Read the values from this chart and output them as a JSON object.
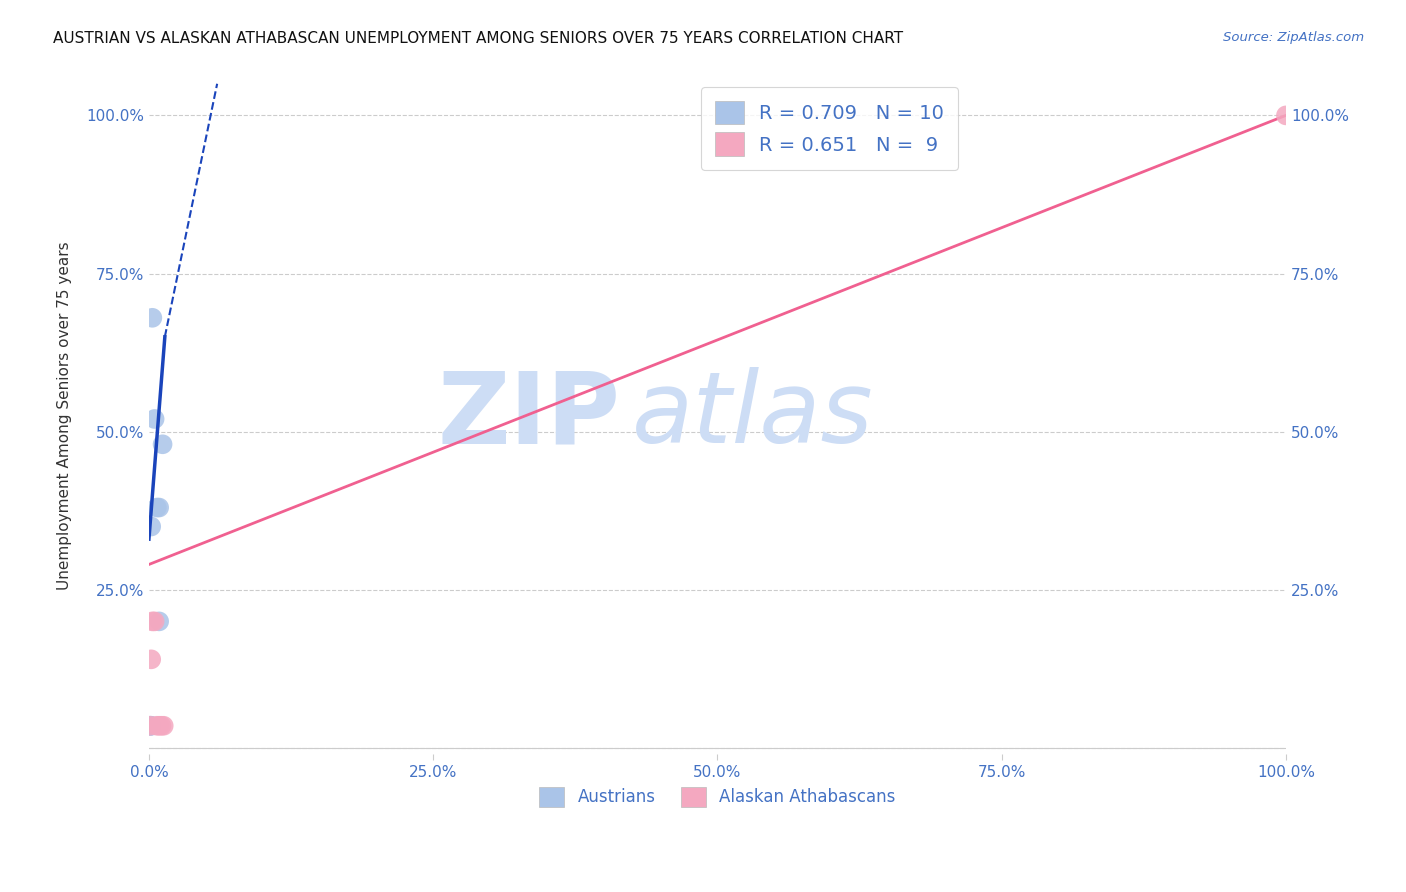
{
  "title": "AUSTRIAN VS ALASKAN ATHABASCAN UNEMPLOYMENT AMONG SENIORS OVER 75 YEARS CORRELATION CHART",
  "source": "Source: ZipAtlas.com",
  "ylabel": "Unemployment Among Seniors over 75 years",
  "background_color": "#ffffff",
  "austrians_color": "#aac4e8",
  "alaskan_color": "#f4a8c0",
  "austrians_line_color": "#1a44bb",
  "alaskan_line_color": "#f06090",
  "axis_color": "#4472c4",
  "grid_color": "#cccccc",
  "austrians_x": [
    0.001,
    0.001,
    0.002,
    0.002,
    0.003,
    0.005,
    0.007,
    0.009,
    0.009,
    0.012
  ],
  "austrians_y": [
    0.035,
    0.035,
    0.035,
    0.35,
    0.68,
    0.52,
    0.38,
    0.2,
    0.38,
    0.48
  ],
  "alaskan_x": [
    0.001,
    0.002,
    0.003,
    0.005,
    0.007,
    0.009,
    0.011,
    0.013,
    1.0
  ],
  "alaskan_y": [
    0.035,
    0.14,
    0.2,
    0.2,
    0.035,
    0.035,
    0.035,
    0.035,
    1.0
  ],
  "aus_line_x0": 0.0,
  "aus_line_y0": 0.33,
  "aus_line_x1": 0.014,
  "aus_line_y1": 0.65,
  "aus_line_dash_x1": 0.06,
  "aus_line_dash_y1": 1.05,
  "ala_line_x0": 0.0,
  "ala_line_y0": 0.29,
  "ala_line_x1": 1.0,
  "ala_line_y1": 1.0,
  "xlim": [
    0.0,
    1.0
  ],
  "ylim": [
    -0.01,
    1.06
  ],
  "xticks": [
    0.0,
    0.25,
    0.5,
    0.75,
    1.0
  ],
  "yticks": [
    0.0,
    0.25,
    0.5,
    0.75,
    1.0
  ],
  "xticklabels": [
    "0.0%",
    "25.0%",
    "50.0%",
    "75.0%",
    "100.0%"
  ],
  "left_yticklabels": [
    "",
    "25.0%",
    "50.0%",
    "75.0%",
    "100.0%"
  ],
  "right_yticklabels": [
    "",
    "25.0%",
    "50.0%",
    "75.0%",
    "100.0%"
  ]
}
